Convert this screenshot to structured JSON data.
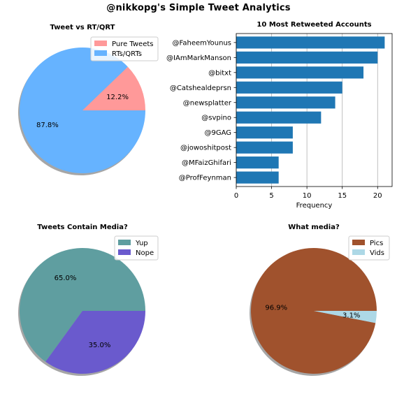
{
  "suptitle": "@nikkopg's Simple Tweet Analytics",
  "chart_data": [
    {
      "type": "pie",
      "title": "Tweet vs RT/QRT",
      "labels": [
        "Pure Tweets",
        "RTs/QRTs"
      ],
      "values": [
        12.2,
        87.8
      ],
      "pct_labels": [
        "12.2%",
        "87.8%"
      ],
      "colors": [
        "#ff9999",
        "#66b3ff"
      ],
      "legend": "top-right",
      "shadow": true
    },
    {
      "type": "bar",
      "orientation": "horizontal",
      "title": "10 Most Retweeted Accounts",
      "categories": [
        "@FaheemYounus",
        "@IAmMarkManson",
        "@bitxt",
        "@Catshealdeprsn",
        "@newsplatter",
        "@svpino",
        "@9GAG",
        "@jowoshitpost",
        "@MFaizGhifari",
        "@ProfFeynman"
      ],
      "values": [
        21,
        20,
        18,
        15,
        14,
        12,
        8,
        8,
        6,
        6
      ],
      "xlabel": "Frequency",
      "ylabel": "",
      "xticks": [
        "0",
        "5",
        "10",
        "15",
        "20"
      ],
      "xlim": [
        0,
        22.05
      ],
      "color": "#1f77b4",
      "grid": "vertical"
    },
    {
      "type": "pie",
      "title": "Tweets Contain Media?",
      "labels": [
        "Yup",
        "Nope"
      ],
      "values": [
        65.0,
        35.0
      ],
      "pct_labels": [
        "65.0%",
        "35.0%"
      ],
      "colors": [
        "#5f9ea0",
        "#6a5acd"
      ],
      "legend": "top-right",
      "shadow": true
    },
    {
      "type": "pie",
      "title": "What media?",
      "labels": [
        "Pics",
        "Vids"
      ],
      "values": [
        96.9,
        3.1
      ],
      "pct_labels": [
        "96.9%",
        "3.1%"
      ],
      "colors": [
        "#a0522d",
        "#add8e6"
      ],
      "legend": "top-right",
      "shadow": true
    }
  ]
}
